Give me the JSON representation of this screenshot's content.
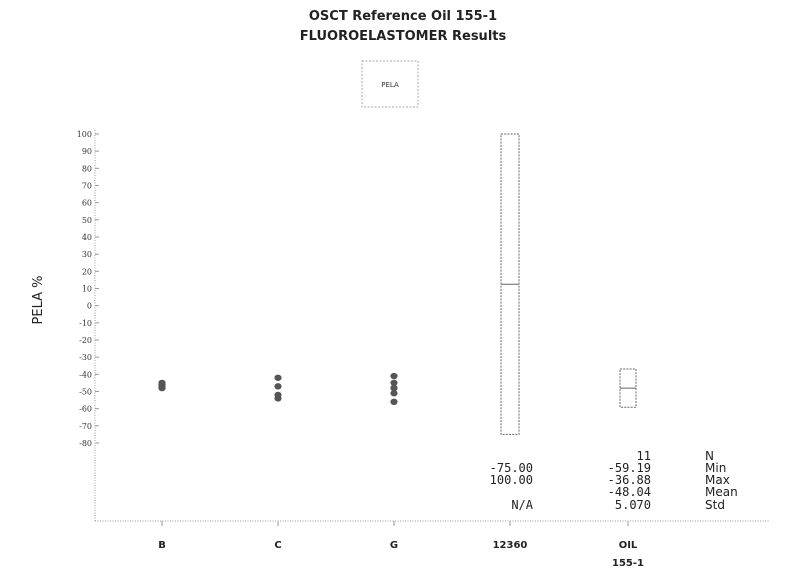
{
  "chart_data": {
    "type": "scatter",
    "title": "OSCT Reference Oil 155-1",
    "subtitle": "FLUOROELASTOMER Results",
    "legend": {
      "label": "PELA",
      "placement": "top-center"
    },
    "ylabel": "PELA %",
    "xlabel": "",
    "ylim": [
      -80,
      100
    ],
    "yticks": [
      100,
      90,
      80,
      70,
      60,
      50,
      40,
      30,
      20,
      10,
      0,
      -10,
      -20,
      -30,
      -40,
      -50,
      -60,
      -70,
      -80
    ],
    "ytick_labels": [
      "100",
      "90",
      "80",
      "70",
      "60",
      "50",
      "40",
      "30",
      "20",
      "10",
      "0",
      "-10",
      "-20",
      "-30",
      "-40",
      "-50",
      "-60",
      "-70",
      "-80"
    ],
    "categories": [
      {
        "label": "B",
        "sublabel": ""
      },
      {
        "label": "C",
        "sublabel": ""
      },
      {
        "label": "G",
        "sublabel": ""
      },
      {
        "label": "12360",
        "sublabel": ""
      },
      {
        "label": "OIL",
        "sublabel": "155-1"
      }
    ],
    "points": [
      {
        "category": "B",
        "values": [
          -45,
          -46,
          -47,
          -48
        ]
      },
      {
        "category": "C",
        "values": [
          -42,
          -47,
          -52,
          -54
        ]
      },
      {
        "category": "G",
        "values": [
          -41,
          -45,
          -48,
          -51,
          -56
        ]
      }
    ],
    "boxes": [
      {
        "category": "12360",
        "min": -75.0,
        "max": 100.0,
        "mean": 12.5
      },
      {
        "category": "OIL",
        "min": -59.19,
        "max": -36.88,
        "mean": -48.04
      }
    ],
    "stats_labels": [
      "N",
      "Min",
      "Max",
      "Mean",
      "Std"
    ],
    "stats": [
      {
        "category": "12360",
        "values": [
          "",
          "-75.00",
          "100.00",
          "",
          "N/A"
        ]
      },
      {
        "category": "OIL",
        "values": [
          "11",
          "-59.19",
          "-36.88",
          "-48.04",
          "5.070"
        ]
      }
    ],
    "grid": false,
    "colors": {
      "points": "#555555",
      "box": "#666666",
      "axis": "#999999"
    }
  }
}
